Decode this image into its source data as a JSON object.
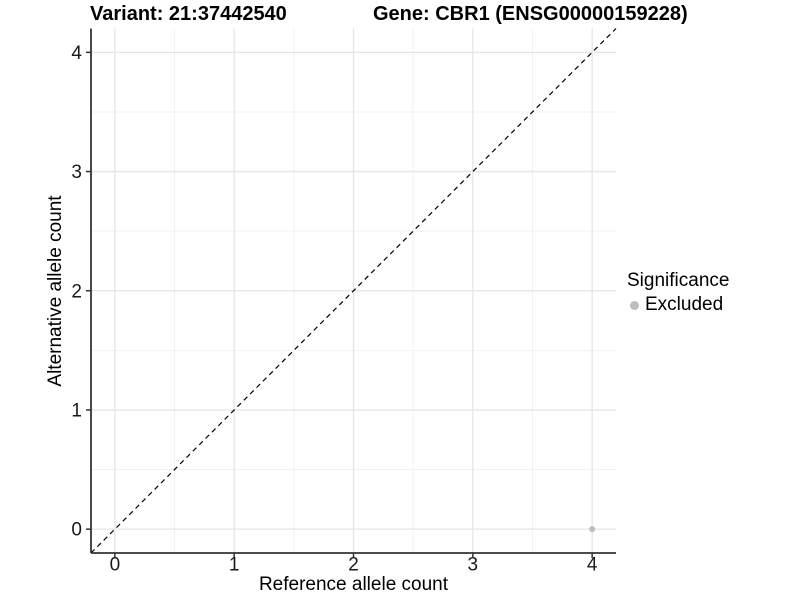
{
  "titles": {
    "variant": "Variant: 21:37442540",
    "gene": "Gene: CBR1 (ENSG00000159228)"
  },
  "axes": {
    "x_label": "Reference allele count",
    "y_label": "Alternative allele count"
  },
  "legend": {
    "title": "Significance",
    "items": [
      {
        "label": "Excluded",
        "color": "#bdbdbd"
      }
    ]
  },
  "colors": {
    "background": "#ffffff",
    "axis_line": "#333333",
    "tick_mark": "#333333",
    "tick_label": "#1a1a1a",
    "grid_major": "#e5e5e5",
    "grid_minor": "#f2f2f2",
    "identity_line": "#000000",
    "point": "#bdbdbd"
  },
  "chart_data": {
    "type": "scatter",
    "title": "Variant: 21:37442540  Gene: CBR1 (ENSG00000159228)",
    "xlabel": "Reference allele count",
    "ylabel": "Alternative allele count",
    "xlim": [
      -0.2,
      4.2
    ],
    "ylim": [
      -0.2,
      4.2
    ],
    "x_ticks": [
      0,
      1,
      2,
      3,
      4
    ],
    "y_ticks": [
      0,
      1,
      2,
      3,
      4
    ],
    "x_minor_ticks": [
      0.5,
      1.5,
      2.5,
      3.5
    ],
    "y_minor_ticks": [
      0.5,
      1.5,
      2.5,
      3.5
    ],
    "grid": true,
    "legend_position": "right",
    "reference_line": {
      "kind": "identity",
      "slope": 1,
      "intercept": 0,
      "style": "dashed",
      "color": "#000000"
    },
    "series": [
      {
        "name": "Excluded",
        "color": "#bdbdbd",
        "points": [
          {
            "x": 4,
            "y": 0
          }
        ]
      }
    ]
  }
}
